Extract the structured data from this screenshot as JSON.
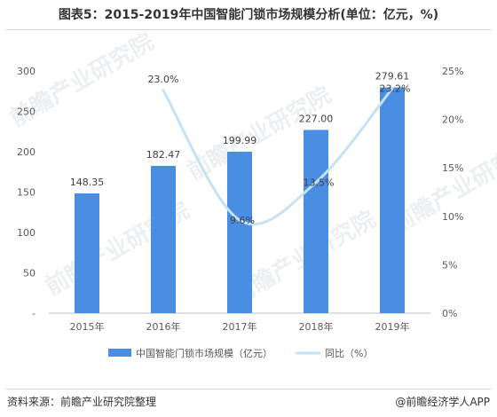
{
  "title": "图表5：2015-2019年中国智能门锁市场规模分析(单位：亿元，%)",
  "source": "资料来源：前瞻产业研究院整理",
  "credit": "@前瞻经济学人APP",
  "watermark": "前瞻产业研究院",
  "colors": {
    "bar": "#4a8ee4",
    "line": "#c6e1f4",
    "axis": "#bfbfbf"
  },
  "chart_data": {
    "type": "bar",
    "categories": [
      "2015年",
      "2016年",
      "2017年",
      "2018年",
      "2019年"
    ],
    "series": [
      {
        "name": "中国智能门锁市场规模（亿元）",
        "type": "bar",
        "axis": "left",
        "values": [
          148.35,
          182.47,
          199.99,
          227.0,
          279.61
        ],
        "labels": [
          "148.35",
          "182.47",
          "199.99",
          "227.00",
          "279.61"
        ]
      },
      {
        "name": "同比（%）",
        "type": "line",
        "axis": "right",
        "values": [
          null,
          23.0,
          9.6,
          13.5,
          23.2
        ],
        "labels": [
          "",
          "23.0%",
          "9.6%",
          "13.5%",
          "23.2%"
        ]
      }
    ],
    "y_left": {
      "min": 0,
      "max": 300,
      "ticks": [
        "-",
        "50",
        "100",
        "150",
        "200",
        "250",
        "300"
      ]
    },
    "y_right": {
      "min": 0,
      "max": 25,
      "ticks": [
        "0%",
        "5%",
        "10%",
        "15%",
        "20%",
        "25%"
      ]
    },
    "legend_position": "bottom",
    "grid": false
  }
}
